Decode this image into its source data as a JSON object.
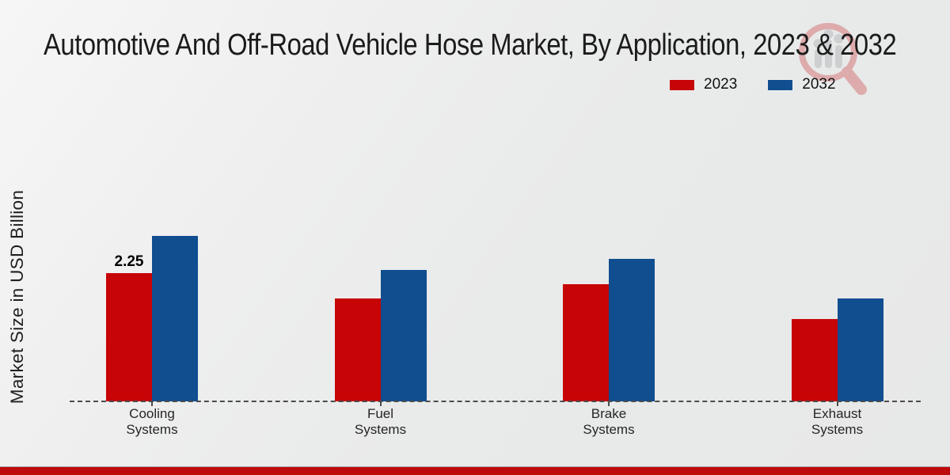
{
  "title": "Automotive And Off-Road Vehicle Hose Market, By Application, 2023 & 2032",
  "y_axis_label": "Market Size in USD Billion",
  "legend": {
    "items": [
      {
        "label": "2023",
        "color": "#c70406"
      },
      {
        "label": "2032",
        "color": "#104e90"
      }
    ]
  },
  "colors": {
    "series_2023": "#c70406",
    "series_2032": "#104e90",
    "footer_band": "#bf0a0c",
    "baseline": "#4c4c4c",
    "background": "#ebecec"
  },
  "watermark_icon": "magnifier-bar-chart-logo",
  "chart_data": {
    "type": "bar",
    "title": "Automotive And Off-Road Vehicle Hose Market, By Application, 2023 & 2032",
    "categories": [
      "Cooling Systems",
      "Fuel Systems",
      "Brake Systems",
      "Exhaust Systems"
    ],
    "series": [
      {
        "name": "2023",
        "color": "#c70406",
        "values": [
          2.25,
          1.8,
          2.05,
          1.45
        ]
      },
      {
        "name": "2032",
        "color": "#104e90",
        "values": [
          2.9,
          2.3,
          2.5,
          1.8
        ]
      }
    ],
    "annotations": [
      {
        "series": "2023",
        "category": "Cooling Systems",
        "text": "2.25"
      }
    ],
    "xlabel": "",
    "ylabel": "Market Size in USD Billion",
    "ylim": [
      0,
      3.5
    ],
    "y_axis_ticks_visible": false,
    "grid": false,
    "baseline_style": "dashed",
    "legend_position": "top-right"
  }
}
